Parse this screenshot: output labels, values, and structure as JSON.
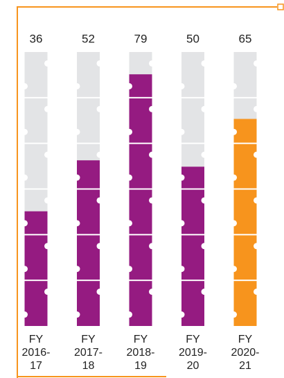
{
  "chart_data": {
    "type": "bar",
    "categories": [
      "FY 2016-17",
      "FY 2017-18",
      "FY 2018-19",
      "FY 2019-20",
      "FY 2020-21"
    ],
    "values": [
      36,
      52,
      79,
      50,
      65
    ],
    "colors": [
      "#951b81",
      "#951b81",
      "#951b81",
      "#951b81",
      "#f7941d"
    ],
    "ylim": [
      0,
      86
    ]
  }
}
